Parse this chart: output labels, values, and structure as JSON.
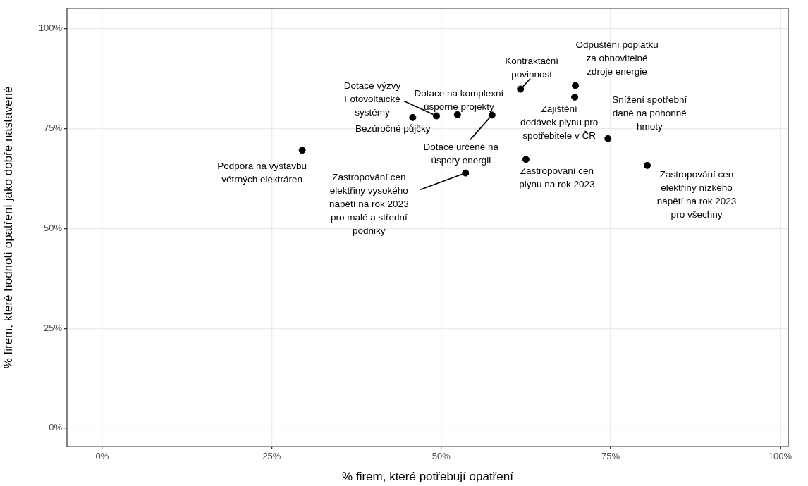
{
  "chart_data": {
    "type": "scatter",
    "xlabel": "% firem, které potřebují opatření",
    "ylabel": "% firem, které hodnotí opatření jako dobře nastavené",
    "series": [
      {
        "color": "#000000",
        "x": [
          29.5,
          45.8,
          49.3,
          52.4,
          57.5,
          53.6,
          61.7,
          69.8,
          69.7,
          62.5,
          74.6,
          80.4
        ],
        "values": [
          69.6,
          77.8,
          78.2,
          78.5,
          78.4,
          63.9,
          84.9,
          85.8,
          82.9,
          67.3,
          72.5,
          65.8
        ],
        "value_labels": [
          "Podpora na výstavbu\nvětrných elektráren",
          "Bezúročné půjčky",
          "Dotace výzvy\nFotovoltaické\nsystémy",
          "Dotace na komplexní\núsporné projekty",
          "Dotace určené na\núspory energii",
          "Zastropování cen\nelektřiny vysokého\nnapětí na rok 2023\npro malé a střední\npodniky",
          "Kontraktační\npovinnost",
          "Odpuštění poplatku\nza obnovitelné\nzdroje energie",
          "Zajištění\ndodávek plynu pro\nspotřebitele v ČR",
          "Zastropování cen\nplynu na rok 2023",
          "Snížení spotřební\ndaně na pohonné\nhmoty",
          "Zastropování cen\nelektřiny nízkého\nnapětí na rok 2023\npro všechny"
        ]
      }
    ],
    "xlim": [
      -5.2,
      101.2
    ],
    "ylim": [
      -4.6,
      105.1
    ],
    "xticks": [
      {
        "value": 0,
        "label": "0%"
      },
      {
        "value": 25,
        "label": "25%"
      },
      {
        "value": 50,
        "label": "50%"
      },
      {
        "value": 75,
        "label": "75%"
      },
      {
        "value": 100,
        "label": "100%"
      }
    ],
    "yticks": [
      {
        "value": 0,
        "label": "0%"
      },
      {
        "value": 25,
        "label": "25%"
      },
      {
        "value": 50,
        "label": "50%"
      },
      {
        "value": 75,
        "label": "75%"
      },
      {
        "value": 100,
        "label": "100%"
      }
    ],
    "grid": true,
    "marker": "circle"
  }
}
